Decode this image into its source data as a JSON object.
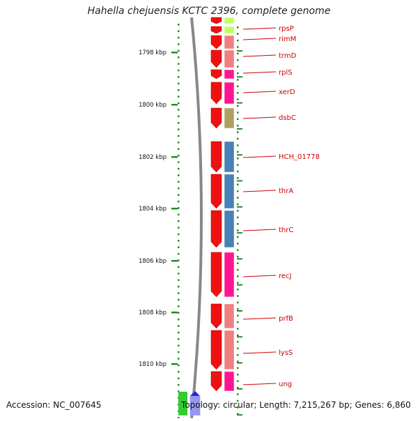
{
  "title": "Hahella chejuensis KCTC 2396, complete genome",
  "footer": {
    "accession": "Accession: NC_007645",
    "summary": "Topology: circular; Length: 7,215,267 bp; Genes: 6,860"
  },
  "ruler": {
    "ticks": [
      "1798 kbp",
      "1800 kbp",
      "1802 kbp",
      "1804 kbp",
      "1806 kbp",
      "1808 kbp",
      "1810 kbp"
    ]
  },
  "genes": [
    {
      "name": "rpsP",
      "color": "#bfff60"
    },
    {
      "name": "rimM",
      "color": "#f08080"
    },
    {
      "name": "trmD",
      "color": "#f08080"
    },
    {
      "name": "rplS",
      "color": "#ff1493"
    },
    {
      "name": "xerD",
      "color": "#ff1493"
    },
    {
      "name": "dsbC",
      "color": "#b0a060"
    },
    {
      "name": "HCH_01778",
      "color": "#4682b4"
    },
    {
      "name": "thrA",
      "color": "#4682b4"
    },
    {
      "name": "thrC",
      "color": "#4682b4"
    },
    {
      "name": "recJ",
      "color": "#ff1493"
    },
    {
      "name": "prfB",
      "color": "#f08080"
    },
    {
      "name": "lysS",
      "color": "#f08080"
    },
    {
      "name": "ung",
      "color": "#ff1493"
    }
  ],
  "colors": {
    "gene_arrow": "#ee1111",
    "label": "#cc0000",
    "dots": "#228b22",
    "backbone": "#888888"
  }
}
